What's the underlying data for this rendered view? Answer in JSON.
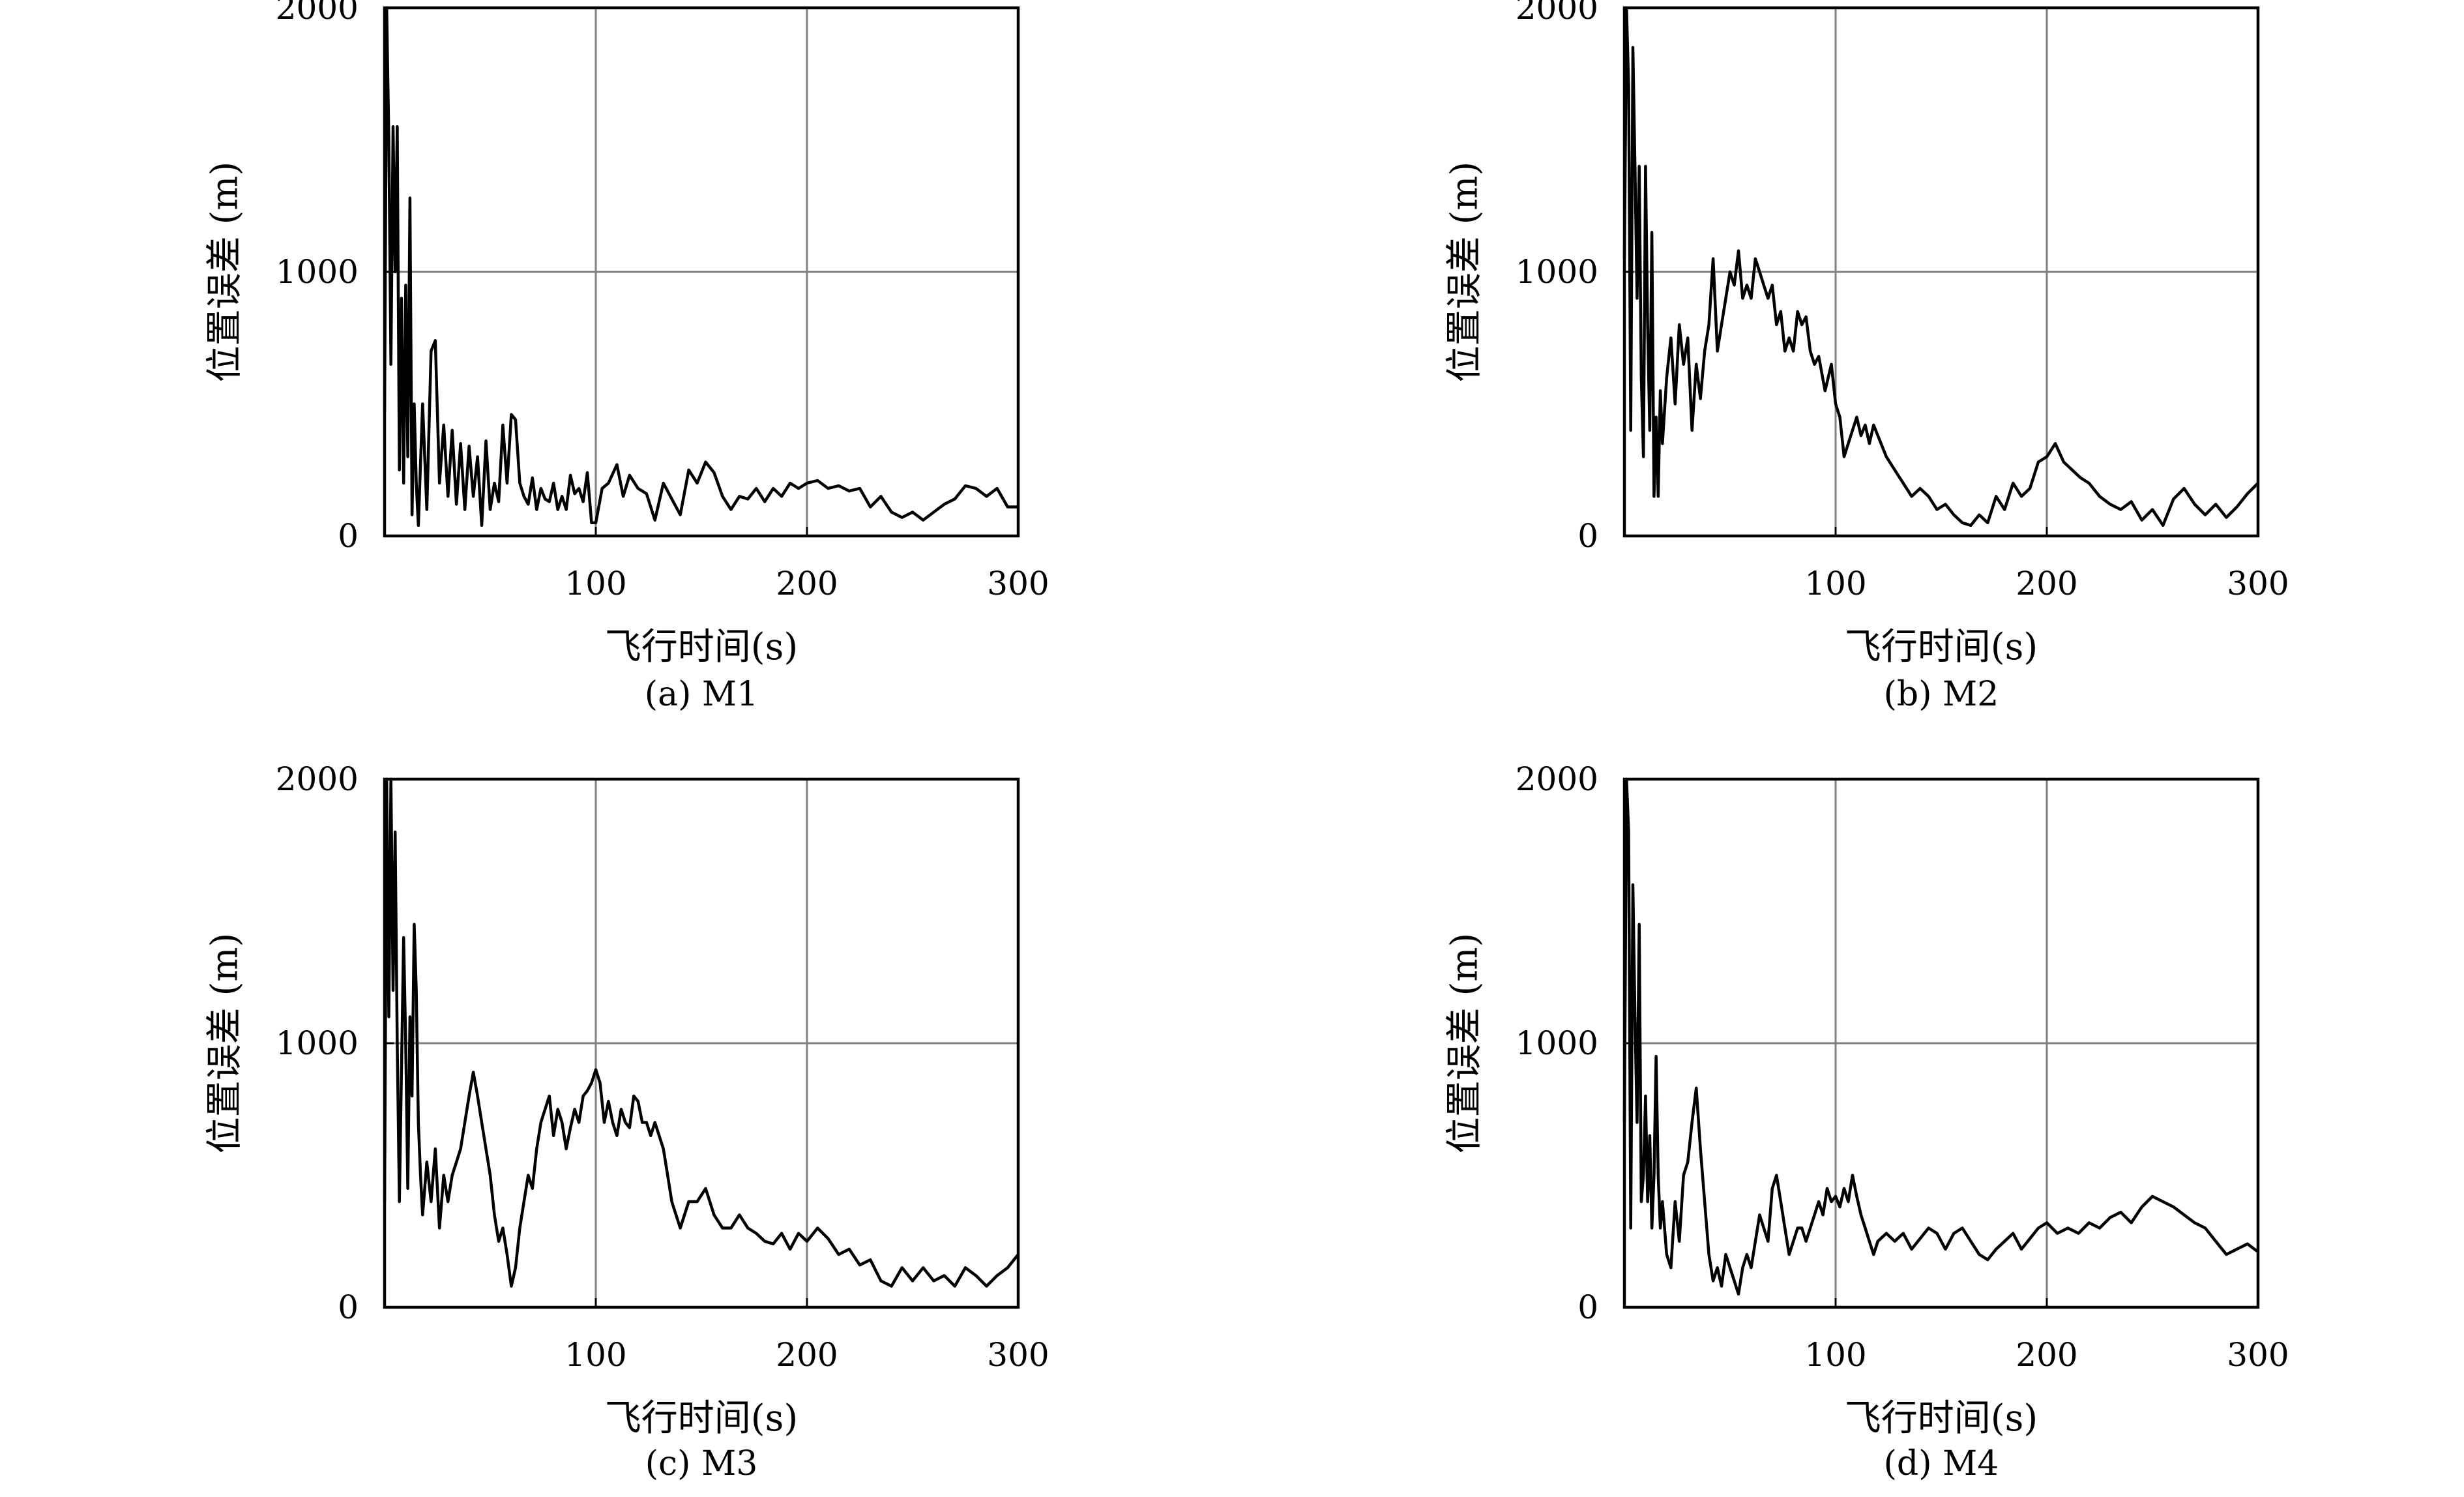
{
  "chart_data": [
    {
      "type": "line",
      "caption": "(a) M1",
      "xlabel": "飞行时间(s)",
      "ylabel": "位置误差 (m)",
      "xlim": [
        0,
        300
      ],
      "ylim": [
        0,
        2000
      ],
      "xticks": [
        100,
        200,
        300
      ],
      "yticks": [
        0,
        1000,
        2000
      ],
      "grid": true,
      "series": [
        {
          "x": [
            0,
            1,
            2,
            3,
            4,
            5,
            6,
            7,
            8,
            9,
            10,
            11,
            12,
            13,
            14,
            15,
            16,
            18,
            20,
            22,
            24,
            26,
            28,
            30,
            32,
            34,
            36,
            38,
            40,
            42,
            44,
            46,
            48,
            50,
            52,
            54,
            56,
            58,
            60,
            62,
            64,
            66,
            68,
            70,
            72,
            74,
            76,
            78,
            80,
            82,
            84,
            86,
            88,
            90,
            92,
            94,
            96,
            98,
            100,
            103,
            106,
            110,
            113,
            116,
            120,
            124,
            128,
            132,
            136,
            140,
            144,
            148,
            152,
            156,
            160,
            164,
            168,
            172,
            176,
            180,
            184,
            188,
            192,
            196,
            200,
            205,
            210,
            215,
            220,
            225,
            230,
            235,
            240,
            245,
            250,
            255,
            260,
            265,
            270,
            275,
            280,
            285,
            290,
            295,
            300
          ],
          "y": [
            470,
            2000,
            1500,
            650,
            1550,
            1000,
            1550,
            250,
            900,
            200,
            950,
            300,
            1280,
            80,
            500,
            200,
            40,
            500,
            100,
            700,
            740,
            200,
            420,
            150,
            400,
            120,
            350,
            100,
            340,
            150,
            300,
            40,
            360,
            100,
            200,
            130,
            420,
            200,
            460,
            440,
            200,
            150,
            120,
            220,
            100,
            180,
            140,
            130,
            200,
            100,
            150,
            100,
            230,
            160,
            180,
            130,
            240,
            50,
            50,
            180,
            200,
            270,
            150,
            230,
            180,
            160,
            60,
            200,
            140,
            80,
            250,
            200,
            280,
            240,
            150,
            100,
            150,
            140,
            180,
            130,
            180,
            150,
            200,
            180,
            200,
            210,
            180,
            190,
            170,
            180,
            110,
            150,
            90,
            70,
            90,
            60,
            90,
            120,
            140,
            190,
            180,
            150,
            180,
            110,
            110
          ]
        }
      ]
    },
    {
      "type": "line",
      "caption": "(b) M2",
      "xlabel": "飞行时间(s)",
      "ylabel": "位置误差 (m)",
      "xlim": [
        0,
        300
      ],
      "ylim": [
        0,
        2000
      ],
      "xticks": [
        100,
        200,
        300
      ],
      "yticks": [
        0,
        1000,
        2000
      ],
      "grid": true,
      "series": [
        {
          "x": [
            0,
            1,
            2,
            3,
            4,
            5,
            6,
            7,
            8,
            9,
            10,
            11,
            12,
            13,
            14,
            15,
            16,
            17,
            18,
            20,
            22,
            24,
            26,
            28,
            30,
            32,
            34,
            36,
            38,
            40,
            42,
            44,
            46,
            48,
            50,
            52,
            54,
            56,
            58,
            60,
            62,
            64,
            66,
            68,
            70,
            72,
            74,
            76,
            78,
            80,
            82,
            84,
            86,
            88,
            90,
            92,
            95,
            98,
            100,
            102,
            104,
            106,
            108,
            110,
            112,
            114,
            116,
            118,
            120,
            124,
            128,
            132,
            136,
            140,
            144,
            148,
            152,
            156,
            160,
            164,
            168,
            172,
            176,
            180,
            184,
            188,
            192,
            196,
            200,
            204,
            208,
            212,
            216,
            220,
            225,
            230,
            235,
            240,
            245,
            250,
            255,
            260,
            265,
            270,
            275,
            280,
            285,
            290,
            295,
            300
          ],
          "y": [
            1050,
            2000,
            1700,
            400,
            1850,
            1400,
            900,
            1400,
            600,
            300,
            1400,
            800,
            400,
            1150,
            150,
            450,
            150,
            550,
            350,
            600,
            750,
            500,
            800,
            650,
            750,
            400,
            650,
            520,
            700,
            800,
            1050,
            700,
            800,
            900,
            1000,
            950,
            1080,
            900,
            950,
            900,
            1050,
            1000,
            950,
            900,
            950,
            800,
            850,
            700,
            750,
            700,
            850,
            800,
            830,
            700,
            650,
            680,
            550,
            650,
            500,
            450,
            300,
            350,
            400,
            450,
            380,
            420,
            350,
            420,
            380,
            300,
            250,
            200,
            150,
            180,
            150,
            100,
            120,
            80,
            50,
            40,
            80,
            50,
            150,
            100,
            200,
            150,
            180,
            280,
            300,
            350,
            280,
            250,
            220,
            200,
            150,
            120,
            100,
            130,
            60,
            100,
            40,
            140,
            180,
            120,
            80,
            120,
            70,
            110,
            160,
            200
          ]
        }
      ]
    },
    {
      "type": "line",
      "caption": "(c) M3",
      "xlabel": "飞行时间(s)",
      "ylabel": "位置误差 (m)",
      "xlim": [
        0,
        300
      ],
      "ylim": [
        0,
        2000
      ],
      "xticks": [
        100,
        200,
        300
      ],
      "yticks": [
        0,
        1000,
        2000
      ],
      "grid": true,
      "series": [
        {
          "x": [
            0,
            1,
            2,
            3,
            4,
            5,
            6,
            7,
            8,
            9,
            10,
            11,
            12,
            13,
            14,
            15,
            16,
            17,
            18,
            20,
            22,
            24,
            26,
            28,
            30,
            32,
            34,
            36,
            38,
            40,
            42,
            44,
            46,
            48,
            50,
            52,
            54,
            56,
            58,
            60,
            62,
            64,
            66,
            68,
            70,
            72,
            74,
            76,
            78,
            80,
            82,
            84,
            86,
            88,
            90,
            92,
            94,
            96,
            98,
            100,
            102,
            104,
            106,
            108,
            110,
            112,
            114,
            116,
            118,
            120,
            122,
            124,
            126,
            128,
            130,
            132,
            134,
            136,
            138,
            140,
            144,
            148,
            152,
            156,
            160,
            164,
            168,
            172,
            176,
            180,
            184,
            188,
            192,
            196,
            200,
            205,
            210,
            215,
            220,
            225,
            230,
            235,
            240,
            245,
            250,
            255,
            260,
            265,
            270,
            275,
            280,
            285,
            290,
            295,
            300
          ],
          "y": [
            400,
            2000,
            1100,
            2000,
            1200,
            1800,
            1000,
            400,
            900,
            1400,
            1000,
            450,
            1100,
            800,
            1450,
            1200,
            700,
            500,
            350,
            550,
            400,
            600,
            300,
            500,
            400,
            500,
            550,
            600,
            700,
            800,
            890,
            800,
            700,
            600,
            500,
            350,
            250,
            300,
            200,
            80,
            150,
            300,
            400,
            500,
            450,
            600,
            700,
            750,
            800,
            650,
            750,
            700,
            600,
            680,
            750,
            700,
            800,
            820,
            850,
            900,
            850,
            700,
            780,
            700,
            650,
            750,
            700,
            680,
            800,
            780,
            700,
            700,
            650,
            700,
            650,
            600,
            500,
            400,
            350,
            300,
            400,
            400,
            450,
            350,
            300,
            300,
            350,
            300,
            280,
            250,
            240,
            280,
            220,
            280,
            250,
            300,
            260,
            200,
            220,
            160,
            180,
            100,
            80,
            150,
            100,
            150,
            100,
            120,
            80,
            150,
            120,
            80,
            120,
            150,
            200
          ]
        }
      ]
    },
    {
      "type": "line",
      "caption": "(d) M4",
      "xlabel": "飞行时间(s)",
      "ylabel": "位置误差 (m)",
      "xlim": [
        0,
        300
      ],
      "ylim": [
        0,
        2000
      ],
      "xticks": [
        100,
        200,
        300
      ],
      "yticks": [
        0,
        1000,
        2000
      ],
      "grid": true,
      "series": [
        {
          "x": [
            0,
            1,
            2,
            3,
            4,
            5,
            6,
            7,
            8,
            9,
            10,
            11,
            12,
            13,
            14,
            15,
            16,
            17,
            18,
            20,
            22,
            24,
            26,
            28,
            30,
            32,
            34,
            36,
            38,
            40,
            42,
            44,
            46,
            48,
            50,
            52,
            54,
            56,
            58,
            60,
            62,
            64,
            66,
            68,
            70,
            72,
            74,
            76,
            78,
            80,
            82,
            84,
            86,
            88,
            90,
            92,
            94,
            96,
            98,
            100,
            102,
            104,
            106,
            108,
            110,
            112,
            114,
            116,
            118,
            120,
            124,
            128,
            132,
            136,
            140,
            144,
            148,
            152,
            156,
            160,
            164,
            168,
            172,
            176,
            180,
            184,
            188,
            192,
            196,
            200,
            205,
            210,
            215,
            220,
            225,
            230,
            235,
            240,
            245,
            250,
            255,
            260,
            265,
            270,
            275,
            280,
            285,
            290,
            295,
            300
          ],
          "y": [
            700,
            2000,
            1800,
            300,
            1600,
            1100,
            700,
            1450,
            400,
            500,
            800,
            400,
            650,
            300,
            500,
            950,
            500,
            300,
            400,
            200,
            150,
            400,
            250,
            500,
            550,
            700,
            830,
            600,
            400,
            200,
            100,
            150,
            80,
            200,
            150,
            100,
            50,
            150,
            200,
            150,
            250,
            350,
            300,
            250,
            450,
            500,
            400,
            300,
            200,
            250,
            300,
            300,
            250,
            300,
            350,
            400,
            350,
            450,
            400,
            420,
            380,
            450,
            400,
            500,
            420,
            350,
            300,
            250,
            200,
            250,
            280,
            250,
            280,
            220,
            260,
            300,
            280,
            220,
            280,
            300,
            250,
            200,
            180,
            220,
            250,
            280,
            220,
            260,
            300,
            320,
            280,
            300,
            280,
            320,
            300,
            340,
            360,
            320,
            380,
            420,
            400,
            380,
            350,
            320,
            300,
            250,
            200,
            220,
            240,
            210
          ]
        }
      ]
    }
  ]
}
